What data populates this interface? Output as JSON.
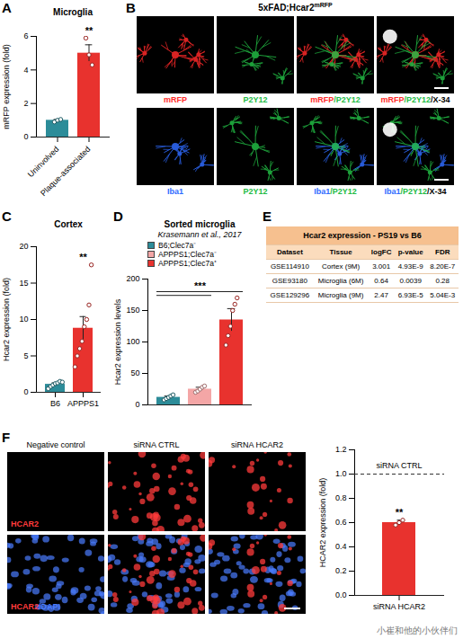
{
  "chart_data": [
    {
      "panel": "A",
      "type": "bar",
      "title": "Microglia",
      "y_label": "mRFP expression (fold)",
      "categories": [
        "Uninvolved",
        "Plaque-associated"
      ],
      "values": [
        1.0,
        5.0
      ],
      "errors": [
        0.05,
        0.5
      ],
      "points": [
        [
          0.9,
          1.0,
          1.05
        ],
        [
          5.9,
          4.9,
          4.3
        ]
      ],
      "colors": [
        "#2c8c99",
        "#e8322e"
      ],
      "ylim": [
        0,
        6
      ],
      "yticks": [
        0,
        2,
        4,
        6
      ],
      "annotations": [
        {
          "text": "**",
          "category": "Plaque-associated"
        }
      ]
    },
    {
      "panel": "C",
      "type": "bar",
      "title": "Cortex",
      "y_label": "Hcar2 expression (fold)",
      "categories": [
        "B6",
        "APPPS1"
      ],
      "values": [
        1.1,
        8.8
      ],
      "errors": [
        0.2,
        1.6
      ],
      "points": [
        [
          0.5,
          0.8,
          1.0,
          1.2,
          1.3,
          1.5,
          1.4
        ],
        [
          3.5,
          5,
          6,
          7,
          9,
          10,
          12,
          17.5
        ]
      ],
      "colors": [
        "#2c8c99",
        "#e8322e"
      ],
      "ylim": [
        0,
        20
      ],
      "yticks": [
        0,
        5,
        10,
        15,
        20
      ],
      "annotations": [
        {
          "text": "**",
          "category": "APPPS1"
        }
      ]
    },
    {
      "panel": "D",
      "type": "bar",
      "title": "Sorted microglia",
      "subtitle": "Krasemann et al., 2017",
      "y_label": "Hcar2 expression levels",
      "categories": [
        "B6;Clec7a⁻",
        "APPPS1;Clec7a⁻",
        "APPPS1;Clec7a⁺"
      ],
      "values": [
        12,
        25,
        135
      ],
      "errors": [
        2,
        3,
        18
      ],
      "points": [
        [
          8,
          10,
          12,
          14,
          16
        ],
        [
          20,
          22,
          25,
          28,
          30
        ],
        [
          95,
          110,
          125,
          150,
          160,
          170
        ]
      ],
      "colors": [
        "#2c8c99",
        "#f4a6a6",
        "#e8322e"
      ],
      "ylim": [
        0,
        200
      ],
      "yticks": [
        0,
        50,
        100,
        150,
        200
      ],
      "legend": "top",
      "tick_labels": "y",
      "annotations": [
        {
          "text": "***",
          "from": [
            "B6;Clec7a⁻",
            "APPPS1;Clec7a⁻"
          ],
          "to": "APPPS1;Clec7a⁺"
        }
      ]
    },
    {
      "type": "bar",
      "y_label": "HCAR2 expression (fold)",
      "categories": [
        "siRNA HCAR2"
      ],
      "values": [
        0.6
      ],
      "errors": [
        0.02
      ],
      "points": [
        [
          0.58,
          0.6,
          0.62
        ]
      ],
      "colors": [
        "#e8322e"
      ],
      "ylim": [
        0,
        1.2
      ],
      "yticks": [
        {
          "value": 0,
          "label": "0.0"
        },
        0.2,
        0.4,
        0.6,
        0.8,
        {
          "value": 1,
          "label": "1.0"
        },
        1.2
      ],
      "reference_line": {
        "y": 1,
        "label": "siRNA CTRL"
      },
      "annotations": [
        {
          "text": "**",
          "category": "siRNA HCAR2"
        }
      ]
    }
  ],
  "images": [
    {
      "panel": "B",
      "title": "5xFAD;Hcar2",
      "title_superscript": "mRFP",
      "rows": [
        [
          [
            {
              "text": "mRFP",
              "color": "#ff2a2a"
            }
          ],
          [
            {
              "text": "P2Y12",
              "color": "#22bb44"
            }
          ],
          [
            {
              "text": "mRFP",
              "color": "#ff2a2a"
            },
            {
              "text": "/P2Y12",
              "color": "#22bb44"
            }
          ],
          [
            {
              "text": "mRFP",
              "color": "#ff2a2a"
            },
            {
              "text": "/P2Y12",
              "color": "#22bb44"
            },
            {
              "text": "/X-34",
              "color": "#000000"
            }
          ]
        ],
        [
          [
            {
              "text": "Iba1",
              "color": "#2f6bff"
            }
          ],
          [
            {
              "text": "P2Y12",
              "color": "#22bb44"
            }
          ],
          [
            {
              "text": "Iba1",
              "color": "#2f6bff"
            },
            {
              "text": "/P2Y12",
              "color": "#22bb44"
            }
          ],
          [
            {
              "text": "Iba1",
              "color": "#2f6bff"
            },
            {
              "text": "/P2Y12",
              "color": "#22bb44"
            },
            {
              "text": "/X-34",
              "color": "#000000"
            }
          ]
        ]
      ]
    },
    {
      "panel": "F",
      "columns": [
        "Negative control",
        "siRNA CTRL",
        "siRNA HCAR2"
      ],
      "row_labels": [
        [
          {
            "text": "HCAR2",
            "color": "#ff3b3b"
          }
        ],
        [
          {
            "text": "HCAR2",
            "color": "#ff3b3b"
          },
          {
            "text": "/DAPI",
            "color": "#4a7cff"
          }
        ]
      ]
    }
  ],
  "table": {
    "panel": "E",
    "title": "Hcar2 expression - PS19 vs B6",
    "header": [
      "Dataset",
      "Tissue",
      "logFC",
      "p-value",
      "FDR"
    ],
    "rows": [
      [
        "GSE114910",
        "Cortex (9M)",
        "3.001",
        "4.93E-9",
        "8.20E-7"
      ],
      [
        "GSE93180",
        "Microglia (6M)",
        "0.64",
        "0.0039",
        "0.28"
      ],
      [
        "GSE129296",
        "Microglia (9M)",
        "2.47",
        "6.93E-5",
        "5.04E-3"
      ]
    ]
  },
  "watermark": "小崔和他的小伙伴们"
}
